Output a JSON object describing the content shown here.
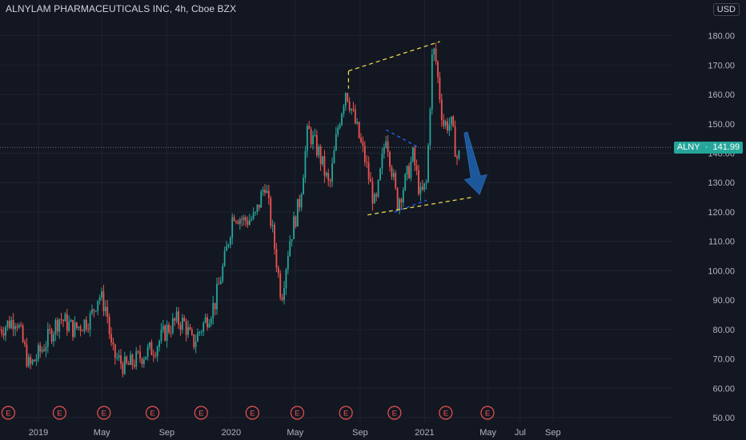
{
  "header": {
    "title": "ALNYLAM PHARMACEUTICALS INC, 4h, Cboe BZX",
    "currency_button": "USD"
  },
  "last_price": {
    "symbol": "ALNY",
    "value": 141.99,
    "label": "141.99"
  },
  "colors": {
    "up": "#26a69a",
    "down": "#ef5350",
    "background": "#131722",
    "trendline": "#e6d84a",
    "inner_line": "#2962ff",
    "arrow": "#1e5fa8",
    "earnings": "#ef5350"
  },
  "earnings_marker": "E",
  "chart_data": {
    "type": "candlestick",
    "x_axis": {
      "ticks": [
        {
          "label": "2019",
          "date": "2019-01-01"
        },
        {
          "label": "May",
          "date": "2019-05-01"
        },
        {
          "label": "Sep",
          "date": "2019-09-01"
        },
        {
          "label": "2020",
          "date": "2020-01-01"
        },
        {
          "label": "May",
          "date": "2020-05-01"
        },
        {
          "label": "Sep",
          "date": "2020-09-01"
        },
        {
          "label": "2021",
          "date": "2021-01-01"
        },
        {
          "label": "May",
          "date": "2021-05-01"
        },
        {
          "label": "Jul",
          "date": "2021-07-01"
        },
        {
          "label": "Sep",
          "date": "2021-09-01"
        }
      ]
    },
    "y_axis": {
      "ticks": [
        "180.00",
        "170.00",
        "160.00",
        "150.00",
        "140.00",
        "130.00",
        "120.00",
        "110.00",
        "100.00",
        "90.00",
        "80.00",
        "70.00",
        "60.00",
        "50.00"
      ],
      "range": [
        47,
        190
      ]
    },
    "price_path": [
      [
        "2018-10-20",
        80
      ],
      [
        "2018-11-20",
        84
      ],
      [
        "2018-12-15",
        67
      ],
      [
        "2019-01-10",
        74
      ],
      [
        "2019-02-10",
        84
      ],
      [
        "2019-03-10",
        80
      ],
      [
        "2019-04-10",
        84
      ],
      [
        "2019-04-25",
        92
      ],
      [
        "2019-05-10",
        87
      ],
      [
        "2019-05-20",
        72
      ],
      [
        "2019-06-15",
        67
      ],
      [
        "2019-07-15",
        71
      ],
      [
        "2019-08-10",
        74
      ],
      [
        "2019-09-01",
        80
      ],
      [
        "2019-09-20",
        83
      ],
      [
        "2019-10-05",
        82
      ],
      [
        "2019-10-20",
        75
      ],
      [
        "2019-11-10",
        82
      ],
      [
        "2019-12-01",
        89
      ],
      [
        "2019-12-20",
        104
      ],
      [
        "2020-01-05",
        120
      ],
      [
        "2020-01-25",
        117
      ],
      [
        "2020-02-15",
        118
      ],
      [
        "2020-03-05",
        130
      ],
      [
        "2020-03-20",
        112
      ],
      [
        "2020-04-05",
        91
      ],
      [
        "2020-04-20",
        110
      ],
      [
        "2020-05-10",
        124
      ],
      [
        "2020-05-25",
        148
      ],
      [
        "2020-06-15",
        140
      ],
      [
        "2020-07-05",
        128
      ],
      [
        "2020-07-20",
        148
      ],
      [
        "2020-08-05",
        162
      ],
      [
        "2020-08-20",
        152
      ],
      [
        "2020-09-10",
        138
      ],
      [
        "2020-09-30",
        121
      ],
      [
        "2020-10-20",
        147
      ],
      [
        "2020-11-10",
        123
      ],
      [
        "2020-11-25",
        130
      ],
      [
        "2020-12-10",
        139
      ],
      [
        "2020-12-25",
        125
      ],
      [
        "2021-01-05",
        130
      ],
      [
        "2021-01-15",
        172
      ],
      [
        "2021-01-20",
        175
      ],
      [
        "2021-02-05",
        150
      ],
      [
        "2021-02-20",
        150
      ],
      [
        "2021-03-05",
        137
      ],
      [
        "2021-03-10",
        141.99
      ]
    ],
    "earnings_dates": [
      "2018-11-05",
      "2019-02-10",
      "2019-05-05",
      "2019-08-05",
      "2019-11-05",
      "2020-02-10",
      "2020-05-05",
      "2020-08-05",
      "2020-11-05",
      "2021-02-10",
      "2021-04-30"
    ],
    "annotations": {
      "channel_upper": [
        [
          "2020-08-10",
          168
        ],
        [
          "2021-01-30",
          178
        ]
      ],
      "channel_lower": [
        [
          "2020-09-15",
          119
        ],
        [
          "2021-04-01",
          125
        ]
      ],
      "inner_upper": [
        [
          "2020-10-20",
          148
        ],
        [
          "2020-12-20",
          142
        ]
      ],
      "inner_lower": [
        [
          "2020-11-05",
          120
        ],
        [
          "2021-01-05",
          124
        ]
      ],
      "arrow_from": [
        "2021-03-20",
        147
      ],
      "arrow_to": [
        "2021-04-15",
        126
      ]
    }
  }
}
